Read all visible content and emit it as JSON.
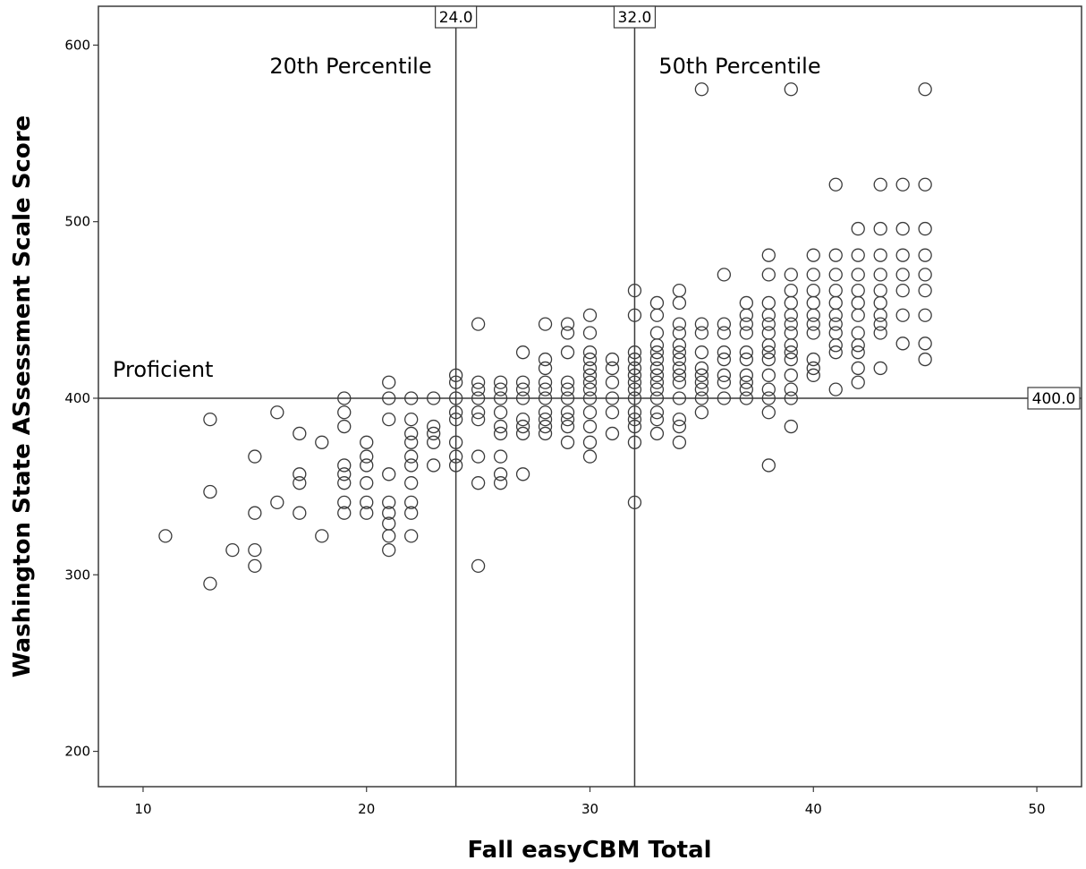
{
  "chart_data": {
    "type": "scatter",
    "title": "",
    "xlabel": "Fall easyCBM Total",
    "ylabel": "Washington State ASsessment Scale Score",
    "xlim": [
      8,
      52
    ],
    "ylim": [
      180,
      622
    ],
    "xticks": [
      10,
      20,
      30,
      40,
      50
    ],
    "yticks": [
      200,
      300,
      400,
      500,
      600
    ],
    "grid": false,
    "reference_lines": {
      "vertical": [
        {
          "x": 24,
          "label": "24.0",
          "annotation": "20th Percentile"
        },
        {
          "x": 32,
          "label": "32.0",
          "annotation": "50th Percentile"
        }
      ],
      "horizontal": [
        {
          "y": 400,
          "label": "400.0",
          "annotation": "Proficient"
        }
      ]
    },
    "series": [
      {
        "marker": "open-circle",
        "points": [
          [
            11,
            322
          ],
          [
            13,
            388
          ],
          [
            13,
            347
          ],
          [
            13,
            295
          ],
          [
            14,
            314
          ],
          [
            15,
            367
          ],
          [
            15,
            335
          ],
          [
            15,
            314
          ],
          [
            15,
            305
          ],
          [
            16,
            392
          ],
          [
            16,
            341
          ],
          [
            17,
            380
          ],
          [
            17,
            357
          ],
          [
            17,
            352
          ],
          [
            17,
            335
          ],
          [
            18,
            375
          ],
          [
            18,
            322
          ],
          [
            19,
            400
          ],
          [
            19,
            392
          ],
          [
            19,
            384
          ],
          [
            19,
            362
          ],
          [
            19,
            357
          ],
          [
            19,
            352
          ],
          [
            19,
            341
          ],
          [
            19,
            335
          ],
          [
            20,
            375
          ],
          [
            20,
            367
          ],
          [
            20,
            362
          ],
          [
            20,
            352
          ],
          [
            20,
            341
          ],
          [
            20,
            335
          ],
          [
            21,
            409
          ],
          [
            21,
            400
          ],
          [
            21,
            388
          ],
          [
            21,
            357
          ],
          [
            21,
            341
          ],
          [
            21,
            335
          ],
          [
            21,
            329
          ],
          [
            21,
            322
          ],
          [
            21,
            314
          ],
          [
            22,
            400
          ],
          [
            22,
            388
          ],
          [
            22,
            380
          ],
          [
            22,
            375
          ],
          [
            22,
            367
          ],
          [
            22,
            362
          ],
          [
            22,
            352
          ],
          [
            22,
            341
          ],
          [
            22,
            335
          ],
          [
            22,
            322
          ],
          [
            23,
            400
          ],
          [
            23,
            384
          ],
          [
            23,
            380
          ],
          [
            23,
            375
          ],
          [
            23,
            362
          ],
          [
            24,
            413
          ],
          [
            24,
            409
          ],
          [
            24,
            400
          ],
          [
            24,
            392
          ],
          [
            24,
            388
          ],
          [
            24,
            375
          ],
          [
            24,
            367
          ],
          [
            24,
            362
          ],
          [
            25,
            442
          ],
          [
            25,
            409
          ],
          [
            25,
            405
          ],
          [
            25,
            400
          ],
          [
            25,
            392
          ],
          [
            25,
            388
          ],
          [
            25,
            367
          ],
          [
            25,
            352
          ],
          [
            25,
            305
          ],
          [
            26,
            409
          ],
          [
            26,
            405
          ],
          [
            26,
            400
          ],
          [
            26,
            392
          ],
          [
            26,
            384
          ],
          [
            26,
            380
          ],
          [
            26,
            367
          ],
          [
            26,
            357
          ],
          [
            26,
            352
          ],
          [
            27,
            426
          ],
          [
            27,
            409
          ],
          [
            27,
            405
          ],
          [
            27,
            400
          ],
          [
            27,
            388
          ],
          [
            27,
            384
          ],
          [
            27,
            380
          ],
          [
            27,
            357
          ],
          [
            28,
            442
          ],
          [
            28,
            422
          ],
          [
            28,
            417
          ],
          [
            28,
            409
          ],
          [
            28,
            405
          ],
          [
            28,
            400
          ],
          [
            28,
            392
          ],
          [
            28,
            388
          ],
          [
            28,
            384
          ],
          [
            28,
            380
          ],
          [
            29,
            442
          ],
          [
            29,
            437
          ],
          [
            29,
            426
          ],
          [
            29,
            409
          ],
          [
            29,
            405
          ],
          [
            29,
            400
          ],
          [
            29,
            392
          ],
          [
            29,
            388
          ],
          [
            29,
            384
          ],
          [
            29,
            375
          ],
          [
            30,
            447
          ],
          [
            30,
            437
          ],
          [
            30,
            426
          ],
          [
            30,
            422
          ],
          [
            30,
            417
          ],
          [
            30,
            413
          ],
          [
            30,
            409
          ],
          [
            30,
            405
          ],
          [
            30,
            400
          ],
          [
            30,
            392
          ],
          [
            30,
            384
          ],
          [
            30,
            375
          ],
          [
            30,
            367
          ],
          [
            31,
            422
          ],
          [
            31,
            417
          ],
          [
            31,
            409
          ],
          [
            31,
            400
          ],
          [
            31,
            392
          ],
          [
            31,
            380
          ],
          [
            32,
            461
          ],
          [
            32,
            447
          ],
          [
            32,
            426
          ],
          [
            32,
            422
          ],
          [
            32,
            417
          ],
          [
            32,
            413
          ],
          [
            32,
            409
          ],
          [
            32,
            405
          ],
          [
            32,
            400
          ],
          [
            32,
            392
          ],
          [
            32,
            388
          ],
          [
            32,
            384
          ],
          [
            32,
            375
          ],
          [
            32,
            341
          ],
          [
            33,
            454
          ],
          [
            33,
            447
          ],
          [
            33,
            437
          ],
          [
            33,
            430
          ],
          [
            33,
            426
          ],
          [
            33,
            422
          ],
          [
            33,
            417
          ],
          [
            33,
            413
          ],
          [
            33,
            409
          ],
          [
            33,
            405
          ],
          [
            33,
            400
          ],
          [
            33,
            392
          ],
          [
            33,
            388
          ],
          [
            33,
            380
          ],
          [
            34,
            461
          ],
          [
            34,
            454
          ],
          [
            34,
            442
          ],
          [
            34,
            437
          ],
          [
            34,
            430
          ],
          [
            34,
            426
          ],
          [
            34,
            422
          ],
          [
            34,
            417
          ],
          [
            34,
            413
          ],
          [
            34,
            409
          ],
          [
            34,
            400
          ],
          [
            34,
            388
          ],
          [
            34,
            384
          ],
          [
            34,
            375
          ],
          [
            35,
            575
          ],
          [
            35,
            442
          ],
          [
            35,
            437
          ],
          [
            35,
            426
          ],
          [
            35,
            417
          ],
          [
            35,
            413
          ],
          [
            35,
            409
          ],
          [
            35,
            405
          ],
          [
            35,
            400
          ],
          [
            35,
            392
          ],
          [
            36,
            470
          ],
          [
            36,
            442
          ],
          [
            36,
            437
          ],
          [
            36,
            426
          ],
          [
            36,
            422
          ],
          [
            36,
            413
          ],
          [
            36,
            409
          ],
          [
            36,
            400
          ],
          [
            37,
            454
          ],
          [
            37,
            447
          ],
          [
            37,
            442
          ],
          [
            37,
            437
          ],
          [
            37,
            426
          ],
          [
            37,
            422
          ],
          [
            37,
            413
          ],
          [
            37,
            409
          ],
          [
            37,
            405
          ],
          [
            37,
            400
          ],
          [
            38,
            481
          ],
          [
            38,
            470
          ],
          [
            38,
            454
          ],
          [
            38,
            447
          ],
          [
            38,
            442
          ],
          [
            38,
            437
          ],
          [
            38,
            430
          ],
          [
            38,
            426
          ],
          [
            38,
            422
          ],
          [
            38,
            413
          ],
          [
            38,
            405
          ],
          [
            38,
            400
          ],
          [
            38,
            392
          ],
          [
            38,
            362
          ],
          [
            39,
            575
          ],
          [
            39,
            470
          ],
          [
            39,
            461
          ],
          [
            39,
            454
          ],
          [
            39,
            447
          ],
          [
            39,
            442
          ],
          [
            39,
            437
          ],
          [
            39,
            430
          ],
          [
            39,
            426
          ],
          [
            39,
            422
          ],
          [
            39,
            413
          ],
          [
            39,
            405
          ],
          [
            39,
            400
          ],
          [
            39,
            384
          ],
          [
            40,
            481
          ],
          [
            40,
            470
          ],
          [
            40,
            461
          ],
          [
            40,
            454
          ],
          [
            40,
            447
          ],
          [
            40,
            442
          ],
          [
            40,
            437
          ],
          [
            40,
            422
          ],
          [
            40,
            417
          ],
          [
            40,
            413
          ],
          [
            41,
            521
          ],
          [
            41,
            481
          ],
          [
            41,
            470
          ],
          [
            41,
            461
          ],
          [
            41,
            454
          ],
          [
            41,
            447
          ],
          [
            41,
            442
          ],
          [
            41,
            437
          ],
          [
            41,
            430
          ],
          [
            41,
            426
          ],
          [
            41,
            405
          ],
          [
            42,
            496
          ],
          [
            42,
            481
          ],
          [
            42,
            470
          ],
          [
            42,
            461
          ],
          [
            42,
            454
          ],
          [
            42,
            447
          ],
          [
            42,
            437
          ],
          [
            42,
            430
          ],
          [
            42,
            426
          ],
          [
            42,
            417
          ],
          [
            42,
            409
          ],
          [
            43,
            521
          ],
          [
            43,
            496
          ],
          [
            43,
            481
          ],
          [
            43,
            470
          ],
          [
            43,
            461
          ],
          [
            43,
            454
          ],
          [
            43,
            447
          ],
          [
            43,
            442
          ],
          [
            43,
            437
          ],
          [
            43,
            417
          ],
          [
            44,
            521
          ],
          [
            44,
            496
          ],
          [
            44,
            481
          ],
          [
            44,
            470
          ],
          [
            44,
            461
          ],
          [
            44,
            447
          ],
          [
            44,
            431
          ],
          [
            45,
            575
          ],
          [
            45,
            521
          ],
          [
            45,
            496
          ],
          [
            45,
            481
          ],
          [
            45,
            470
          ],
          [
            45,
            461
          ],
          [
            45,
            447
          ],
          [
            45,
            431
          ],
          [
            45,
            422
          ]
        ]
      }
    ]
  }
}
